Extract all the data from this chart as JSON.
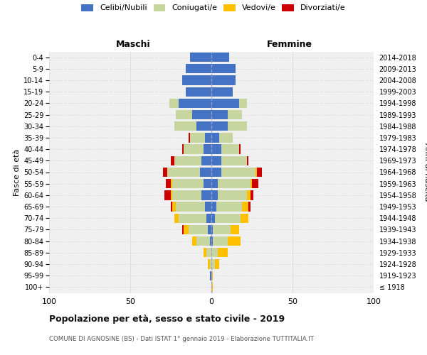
{
  "age_groups": [
    "100+",
    "95-99",
    "90-94",
    "85-89",
    "80-84",
    "75-79",
    "70-74",
    "65-69",
    "60-64",
    "55-59",
    "50-54",
    "45-49",
    "40-44",
    "35-39",
    "30-34",
    "25-29",
    "20-24",
    "15-19",
    "10-14",
    "5-9",
    "0-4"
  ],
  "birth_years": [
    "≤ 1918",
    "1919-1923",
    "1924-1928",
    "1929-1933",
    "1934-1938",
    "1939-1943",
    "1944-1948",
    "1949-1953",
    "1954-1958",
    "1959-1963",
    "1964-1968",
    "1969-1973",
    "1974-1978",
    "1979-1983",
    "1984-1988",
    "1989-1993",
    "1994-1998",
    "1999-2003",
    "2004-2008",
    "2009-2013",
    "2014-2018"
  ],
  "male_celibi": [
    0,
    1,
    0,
    0,
    1,
    2,
    3,
    4,
    6,
    5,
    7,
    6,
    5,
    4,
    9,
    12,
    20,
    16,
    18,
    16,
    13
  ],
  "male_coniugati": [
    0,
    0,
    1,
    3,
    8,
    12,
    17,
    18,
    18,
    19,
    20,
    17,
    12,
    9,
    14,
    10,
    6,
    0,
    0,
    0,
    0
  ],
  "male_vedovi": [
    0,
    0,
    1,
    2,
    3,
    3,
    3,
    2,
    1,
    1,
    0,
    0,
    0,
    0,
    0,
    0,
    0,
    0,
    0,
    0,
    0
  ],
  "male_divorziati": [
    0,
    0,
    0,
    0,
    0,
    1,
    0,
    1,
    4,
    3,
    3,
    2,
    1,
    1,
    0,
    0,
    0,
    0,
    0,
    0,
    0
  ],
  "female_celibi": [
    0,
    0,
    0,
    0,
    1,
    1,
    2,
    3,
    4,
    4,
    6,
    6,
    6,
    5,
    10,
    10,
    17,
    13,
    15,
    15,
    11
  ],
  "female_coniugati": [
    0,
    0,
    2,
    4,
    9,
    11,
    16,
    16,
    18,
    20,
    21,
    16,
    11,
    8,
    12,
    9,
    5,
    0,
    0,
    0,
    0
  ],
  "female_vedovi": [
    1,
    1,
    3,
    6,
    8,
    5,
    5,
    4,
    2,
    1,
    1,
    0,
    0,
    0,
    0,
    0,
    0,
    0,
    0,
    0,
    0
  ],
  "female_divorziati": [
    0,
    0,
    0,
    0,
    0,
    0,
    0,
    1,
    2,
    4,
    3,
    1,
    1,
    0,
    0,
    0,
    0,
    0,
    0,
    0,
    0
  ],
  "color_celibi": "#4472c4",
  "color_coniugati": "#c6d69e",
  "color_vedovi": "#ffc000",
  "color_divorziati": "#cc0000",
  "title": "Popolazione per età, sesso e stato civile - 2019",
  "subtitle": "COMUNE DI AGNOSINE (BS) - Dati ISTAT 1° gennaio 2019 - Elaborazione TUTTITALIA.IT",
  "xlabel_left": "Maschi",
  "xlabel_right": "Femmine",
  "ylabel_left": "Fasce di età",
  "ylabel_right": "Anni di nascita",
  "xlim": 100,
  "bg_color": "#f0f0f0",
  "grid_color": "#cccccc"
}
